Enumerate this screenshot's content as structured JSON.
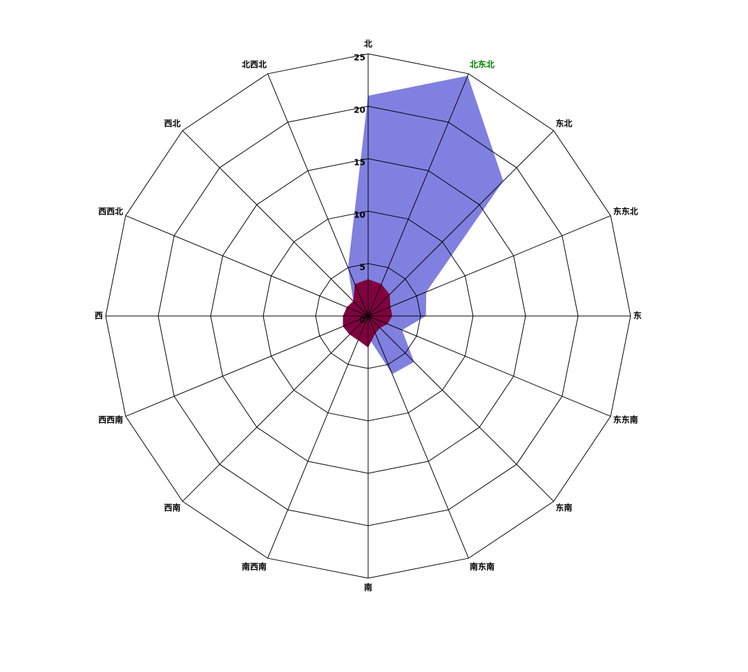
{
  "chart_data": {
    "type": "radar",
    "categories": [
      "北",
      "北东北",
      "东北",
      "东东北",
      "东",
      "东东南",
      "东南",
      "南东南",
      "南",
      "南西南",
      "西南",
      "西西南",
      "西",
      "西西北",
      "西北",
      "北西北"
    ],
    "series": [
      {
        "color": "#8080e0",
        "values": [
          21,
          24.8,
          18.2,
          6,
          5.5,
          3.5,
          6.2,
          6,
          2,
          1.5,
          1.5,
          1.5,
          1.5,
          1.5,
          2,
          5
        ]
      },
      {
        "color": "#800040",
        "values": [
          3.5,
          3.3,
          2.9,
          2.3,
          2.3,
          2,
          1.6,
          1.8,
          3,
          2.5,
          2.5,
          2.6,
          2.4,
          2.2,
          2,
          3.3
        ]
      }
    ],
    "rlim": [
      0,
      25
    ],
    "rticks": [
      0,
      5,
      10,
      15,
      20,
      25
    ],
    "grid": true
  }
}
